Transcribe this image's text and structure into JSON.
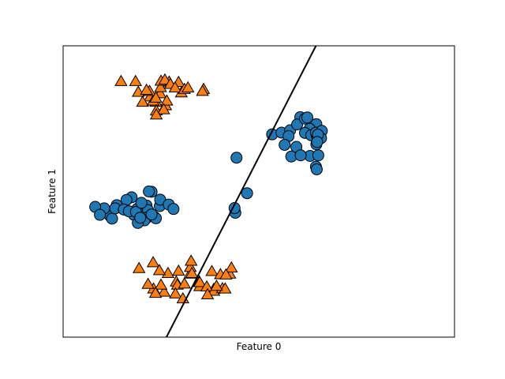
{
  "chart_data": {
    "type": "scatter",
    "title": "",
    "xlabel": "Feature 0",
    "ylabel": "Feature 1",
    "xlim": [
      0,
      1
    ],
    "ylim": [
      0,
      1
    ],
    "x_ticks": "none",
    "y_ticks": "none",
    "grid": false,
    "legend": "none",
    "series": [
      {
        "marker": "circle",
        "color": "#1f77b4",
        "points": [
          [
            0.534,
            0.696
          ],
          [
            0.558,
            0.702
          ],
          [
            0.58,
            0.71
          ],
          [
            0.606,
            0.755
          ],
          [
            0.576,
            0.69
          ],
          [
            0.566,
            0.66
          ],
          [
            0.583,
            0.62
          ],
          [
            0.596,
            0.653
          ],
          [
            0.647,
            0.731
          ],
          [
            0.63,
            0.715
          ],
          [
            0.618,
            0.701
          ],
          [
            0.634,
            0.693
          ],
          [
            0.648,
            0.692
          ],
          [
            0.646,
            0.702
          ],
          [
            0.661,
            0.708
          ],
          [
            0.659,
            0.683
          ],
          [
            0.647,
            0.662
          ],
          [
            0.631,
            0.622
          ],
          [
            0.607,
            0.624
          ],
          [
            0.646,
            0.585
          ],
          [
            0.648,
            0.576
          ],
          [
            0.651,
            0.695
          ],
          [
            0.598,
            0.73
          ],
          [
            0.618,
            0.75
          ],
          [
            0.624,
            0.754
          ],
          [
            0.652,
            0.624
          ],
          [
            0.649,
            0.67
          ],
          [
            0.443,
            0.616
          ],
          [
            0.47,
            0.494
          ],
          [
            0.44,
            0.427
          ],
          [
            0.438,
            0.443
          ],
          [
            0.226,
            0.499
          ],
          [
            0.175,
            0.48
          ],
          [
            0.219,
            0.5
          ],
          [
            0.162,
            0.471
          ],
          [
            0.189,
            0.44
          ],
          [
            0.213,
            0.452
          ],
          [
            0.217,
            0.436
          ],
          [
            0.247,
            0.45
          ],
          [
            0.248,
            0.472
          ],
          [
            0.181,
            0.42
          ],
          [
            0.137,
            0.453
          ],
          [
            0.12,
            0.416
          ],
          [
            0.105,
            0.442
          ],
          [
            0.082,
            0.447
          ],
          [
            0.094,
            0.42
          ],
          [
            0.125,
            0.407
          ],
          [
            0.133,
            0.442
          ],
          [
            0.155,
            0.438
          ],
          [
            0.168,
            0.432
          ],
          [
            0.216,
            0.412
          ],
          [
            0.208,
            0.401
          ],
          [
            0.233,
            0.413
          ],
          [
            0.186,
            0.43
          ],
          [
            0.2,
            0.461
          ],
          [
            0.191,
            0.392
          ],
          [
            0.197,
            0.41
          ],
          [
            0.237,
            0.408
          ],
          [
            0.27,
            0.455
          ],
          [
            0.282,
            0.44
          ],
          [
            0.226,
            0.421
          ]
        ]
      },
      {
        "marker": "triangle",
        "color": "#ff7f0e",
        "points": [
          [
            0.148,
            0.875
          ],
          [
            0.185,
            0.875
          ],
          [
            0.192,
            0.838
          ],
          [
            0.222,
            0.822
          ],
          [
            0.203,
            0.804
          ],
          [
            0.237,
            0.804
          ],
          [
            0.248,
            0.833
          ],
          [
            0.262,
            0.792
          ],
          [
            0.295,
            0.872
          ],
          [
            0.302,
            0.836
          ],
          [
            0.271,
            0.873
          ],
          [
            0.265,
            0.808
          ],
          [
            0.249,
            0.854
          ],
          [
            0.25,
            0.876
          ],
          [
            0.26,
            0.88
          ],
          [
            0.23,
            0.808
          ],
          [
            0.274,
            0.865
          ],
          [
            0.286,
            0.853
          ],
          [
            0.31,
            0.848
          ],
          [
            0.319,
            0.853
          ],
          [
            0.359,
            0.848
          ],
          [
            0.356,
            0.841
          ],
          [
            0.238,
            0.774
          ],
          [
            0.257,
            0.778
          ],
          [
            0.238,
            0.76
          ],
          [
            0.221,
            0.841
          ],
          [
            0.213,
            0.845
          ],
          [
            0.237,
            0.818
          ],
          [
            0.324,
            0.214
          ],
          [
            0.426,
            0.214
          ],
          [
            0.38,
            0.223
          ],
          [
            0.402,
            0.212
          ],
          [
            0.325,
            0.237
          ],
          [
            0.385,
            0.162
          ],
          [
            0.349,
            0.171
          ],
          [
            0.348,
            0.187
          ],
          [
            0.289,
            0.187
          ],
          [
            0.292,
            0.176
          ],
          [
            0.268,
            0.216
          ],
          [
            0.31,
            0.18
          ],
          [
            0.258,
            0.152
          ],
          [
            0.287,
            0.146
          ],
          [
            0.231,
            0.163
          ],
          [
            0.306,
            0.129
          ],
          [
            0.295,
            0.224
          ],
          [
            0.23,
            0.253
          ],
          [
            0.246,
            0.226
          ],
          [
            0.25,
            0.176
          ],
          [
            0.236,
            0.148
          ],
          [
            0.217,
            0.179
          ],
          [
            0.194,
            0.233
          ],
          [
            0.327,
            0.258
          ],
          [
            0.329,
            0.216
          ],
          [
            0.349,
            0.185
          ],
          [
            0.367,
            0.17
          ],
          [
            0.385,
            0.155
          ],
          [
            0.407,
            0.164
          ],
          [
            0.43,
            0.235
          ],
          [
            0.416,
            0.211
          ],
          [
            0.414,
            0.163
          ],
          [
            0.392,
            0.172
          ],
          [
            0.369,
            0.143
          ]
        ]
      }
    ],
    "decision_boundary": {
      "type": "line",
      "color": "#000000",
      "from": [
        0.264,
        0.0
      ],
      "to": [
        0.646,
        1.0
      ]
    }
  }
}
